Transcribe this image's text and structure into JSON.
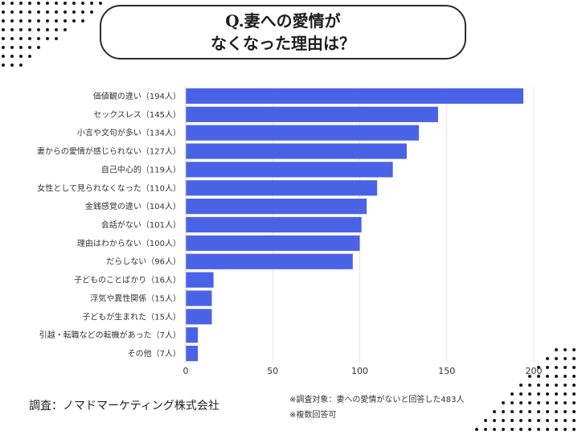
{
  "title": {
    "line1": "Q.妻への愛情が",
    "line2": "なくなった理由は？"
  },
  "footer": {
    "source": "調査：ノマドマーケティング株式会社",
    "note1": "※調査対象：妻への愛情がないと回答した483人",
    "note2": "※複数回答可"
  },
  "colors": {
    "bar": "#4a63e6",
    "grid": "#e5e5e5",
    "dots": "#1a1a1a"
  },
  "chart_data": {
    "type": "bar",
    "orientation": "horizontal",
    "categories": [
      "価値観の違い（194人）",
      "セックスレス（145人）",
      "小言や文句が多い（134人）",
      "妻からの愛情が感じられない（127人）",
      "自己中心的（119人）",
      "女性として見られなくなった（110人）",
      "金銭感覚の違い（104人）",
      "会話がない（101人）",
      "理由はわからない（100人）",
      "だらしない（96人）",
      "子どものことばかり（16人）",
      "浮気や異性関係（15人）",
      "子どもが生まれた（15人）",
      "引越・転職などの転機があった（7人）",
      "その他（7人）"
    ],
    "values": [
      194,
      145,
      134,
      127,
      119,
      110,
      104,
      101,
      100,
      96,
      16,
      15,
      15,
      7,
      7
    ],
    "xlim": [
      0,
      200
    ],
    "xticks": [
      0,
      50,
      100,
      150,
      200
    ],
    "grid": "vertical",
    "legend": "none"
  }
}
